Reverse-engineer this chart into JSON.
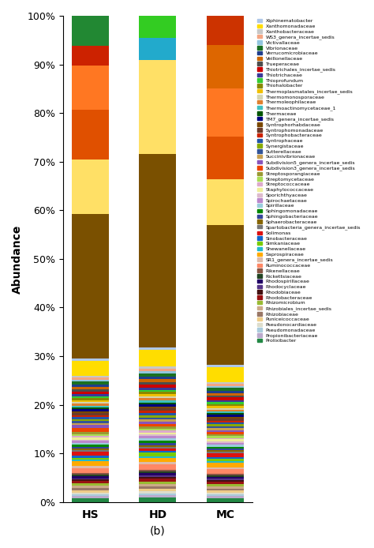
{
  "groups": [
    "HS",
    "HD",
    "MC"
  ],
  "ylabel": "Abundance",
  "xlabel": "(b)",
  "legend_taxa": [
    "Xiphinematobacter",
    "Xanthomonadaceae",
    "Xanthobacteraceae",
    "WS3_genera_incertae_sedis",
    "Victivallaceae",
    "Vibrionaceae",
    "Verrucomicrobiaceae",
    "Veillonellaceae",
    "Trueperaceae",
    "Thiotrichales_incertae_sedis",
    "Thiotrichaceae",
    "Thioprofundum",
    "Thiohalobacter",
    "Thermoplasmatales_incertae_sedis",
    "Thermomonosporaceae",
    "Thermoleophilaceae",
    "Thermoactinomycetaceae_1",
    "Thermaceae",
    "TM7_genera_incertae_sedis",
    "Syntrophorhabdaceae",
    "Syntrophomonadaceae",
    "Syntrophobacteraceae",
    "Syntrophaceae",
    "Synergistaceae",
    "Sutterellaceae",
    "Succinivibrionaceae",
    "Subdivision5_genera_incertae_sedis",
    "Subdivision3_genera_incertae_sedis",
    "Streptosporangiaceae",
    "Streptomycetaceae",
    "Streptococcaceae",
    "Staphylococcaceae",
    "Sporichthyaceae",
    "Spirochaetaceae",
    "Spirillaceae",
    "Sphingomonadaceae",
    "Sphingobacteriaceae",
    "Sphaerobacteraceae",
    "Spartobacteria_genera_incertae_sedis",
    "Solimonas",
    "Sinobacteraceae",
    "Simkaniaceae",
    "Shewanellaceae",
    "Saprospiraceae",
    "SR1_genera_incertae_sedis",
    "Ruminococcaceae",
    "Rikenellaceae",
    "Rickettsiaceae",
    "Rhodospirillaceae",
    "Rhodocyclaceae",
    "Rhodobiaceae",
    "Rhodobacteraceae",
    "Rhizomicrobium",
    "Rhizobiales_incertae_sedis",
    "Rhizobiaceae",
    "Puniceicoccaceae",
    "Pseudonocardiaceae",
    "Pseudomonadaceae",
    "Propionibacteriaceae",
    "Prolixibacter"
  ],
  "legend_colors": [
    "#aec7e8",
    "#ffdd00",
    "#c7c7c7",
    "#f4a582",
    "#92c5de",
    "#1a7022",
    "#1f3e8c",
    "#cc6600",
    "#4d4d4d",
    "#cc0000",
    "#3a3a99",
    "#33cc33",
    "#888800",
    "#f0c000",
    "#d4d4b0",
    "#e08030",
    "#40c0c0",
    "#005500",
    "#00007f",
    "#7a4800",
    "#6b3a2a",
    "#cc2200",
    "#2255aa",
    "#88aa00",
    "#335599",
    "#c8a050",
    "#8855bb",
    "#ee4400",
    "#999933",
    "#aadd55",
    "#ddaacc",
    "#eeee99",
    "#ddbbcc",
    "#bb88cc",
    "#99ccdd",
    "#008800",
    "#334499",
    "#886600",
    "#777777",
    "#dd1111",
    "#1166cc",
    "#77cc00",
    "#22bbcc",
    "#ffaa00",
    "#ddbbaa",
    "#ff8866",
    "#885544",
    "#224422",
    "#220066",
    "#553388",
    "#441111",
    "#991111",
    "#99bb33",
    "#ccaa88",
    "#997766",
    "#eecc88",
    "#ddddcc",
    "#aaccdd",
    "#bbaacc",
    "#228844"
  ],
  "values": {
    "Prolixibacter": [
      0.008,
      0.008,
      0.008
    ],
    "Propionibacteriaceae": [
      0.004,
      0.004,
      0.004
    ],
    "Pseudomonadaceae": [
      0.004,
      0.004,
      0.004
    ],
    "Pseudonocardiaceae": [
      0.003,
      0.003,
      0.003
    ],
    "Puniceicoccaceae": [
      0.005,
      0.005,
      0.005
    ],
    "Rhizobiaceae": [
      0.004,
      0.004,
      0.004
    ],
    "Rhizobiales_incertae_sedis": [
      0.005,
      0.005,
      0.005
    ],
    "Rhizomicrobium": [
      0.004,
      0.004,
      0.004
    ],
    "Rhodobacteraceae": [
      0.005,
      0.005,
      0.005
    ],
    "Rhodobiaceae": [
      0.003,
      0.003,
      0.003
    ],
    "Rhodocyclaceae": [
      0.003,
      0.003,
      0.003
    ],
    "Rhodospirillaceae": [
      0.004,
      0.004,
      0.004
    ],
    "Rickettsiaceae": [
      0.003,
      0.003,
      0.003
    ],
    "Rikenellaceae": [
      0.003,
      0.003,
      0.003
    ],
    "Ruminococcaceae": [
      0.01,
      0.01,
      0.01
    ],
    "SR1_genera_incertae_sedis": [
      0.004,
      0.004,
      0.004
    ],
    "Saprospiraceae": [
      0.01,
      0.008,
      0.01
    ],
    "Shewanellaceae": [
      0.003,
      0.003,
      0.003
    ],
    "Simkaniaceae": [
      0.004,
      0.006,
      0.004
    ],
    "Sinobacteraceae": [
      0.004,
      0.004,
      0.004
    ],
    "Solimonas": [
      0.008,
      0.004,
      0.008
    ],
    "Spartobacteria_genera_incertae_sedis": [
      0.003,
      0.003,
      0.003
    ],
    "Sphaerobacteraceae": [
      0.003,
      0.003,
      0.003
    ],
    "Sphingobacteriaceae": [
      0.004,
      0.004,
      0.004
    ],
    "Sphingomonadaceae": [
      0.004,
      0.004,
      0.004
    ],
    "Spirillaceae": [
      0.004,
      0.004,
      0.004
    ],
    "Spirochaetaceae": [
      0.004,
      0.004,
      0.004
    ],
    "Sporichthyaceae": [
      0.003,
      0.003,
      0.003
    ],
    "Staphylococcaceae": [
      0.004,
      0.004,
      0.004
    ],
    "Streptococcaceae": [
      0.003,
      0.003,
      0.003
    ],
    "Streptomycetaceae": [
      0.004,
      0.004,
      0.004
    ],
    "Streptosporangiaceae": [
      0.004,
      0.004,
      0.004
    ],
    "Subdivision3_genera_incertae_sedis": [
      0.008,
      0.004,
      0.004
    ],
    "Subdivision5_genera_incertae_sedis": [
      0.006,
      0.004,
      0.004
    ],
    "Succinivibrionaceae": [
      0.004,
      0.004,
      0.004
    ],
    "Sutterellaceae": [
      0.004,
      0.004,
      0.004
    ],
    "Synergistaceae": [
      0.004,
      0.004,
      0.004
    ],
    "Syntrophaceae": [
      0.004,
      0.004,
      0.004
    ],
    "Syntrophobacteraceae": [
      0.004,
      0.004,
      0.004
    ],
    "Syntrophomonadaceae": [
      0.004,
      0.004,
      0.004
    ],
    "Syntrophorhabdaceae": [
      0.004,
      0.004,
      0.004
    ],
    "TM7_genera_incertae_sedis": [
      0.004,
      0.004,
      0.004
    ],
    "Thermaceae": [
      0.003,
      0.003,
      0.003
    ],
    "Thermoactinomycetaceae_1": [
      0.004,
      0.004,
      0.004
    ],
    "Thermoleophilaceae": [
      0.004,
      0.004,
      0.004
    ],
    "Thermomonosporaceae": [
      0.003,
      0.003,
      0.003
    ],
    "Thermoplasmatales_incertae_sedis": [
      0.004,
      0.004,
      0.004
    ],
    "Thiohalobacter": [
      0.004,
      0.004,
      0.004
    ],
    "Thioprofundum": [
      0.004,
      0.004,
      0.004
    ],
    "Thiotrichaceae": [
      0.004,
      0.004,
      0.004
    ],
    "Thiotrichales_incertae_sedis": [
      0.006,
      0.006,
      0.006
    ],
    "Trueperaceae": [
      0.004,
      0.004,
      0.004
    ],
    "Veillonellaceae": [
      0.005,
      0.005,
      0.005
    ],
    "Verrucomicrobiaceae": [
      0.005,
      0.005,
      0.005
    ],
    "Vibrionaceae": [
      0.006,
      0.006,
      0.006
    ],
    "Victivallaceae": [
      0.004,
      0.004,
      0.004
    ],
    "WS3_genera_incertae_sedis": [
      0.004,
      0.004,
      0.004
    ],
    "Xanthobacteraceae": [
      0.004,
      0.004,
      0.004
    ],
    "Xanthomonadaceae": [
      0.03,
      0.03,
      0.03
    ],
    "Xiphinematobacter": [
      0.005,
      0.005,
      0.005
    ],
    "_large_brown_HS": [
      0.29,
      0.35,
      0.29
    ],
    "_large_yellow_HS": [
      0.11,
      0.17,
      0.095
    ],
    "_large_orange1_HS": [
      0.1,
      0.0,
      0.09
    ],
    "_large_orange2_HS": [
      0.09,
      0.0,
      0.1
    ],
    "_large_red_HS": [
      0.04,
      0.0,
      0.0
    ],
    "_large_green_HS": [
      0.06,
      0.0,
      0.0
    ],
    "_large_cyan_HD": [
      0.0,
      0.04,
      0.0
    ],
    "_large_green_HD": [
      0.0,
      0.04,
      0.0
    ],
    "_large_orange_MC": [
      0.0,
      0.0,
      0.09
    ],
    "_large_red_MC": [
      0.0,
      0.0,
      0.06
    ]
  }
}
